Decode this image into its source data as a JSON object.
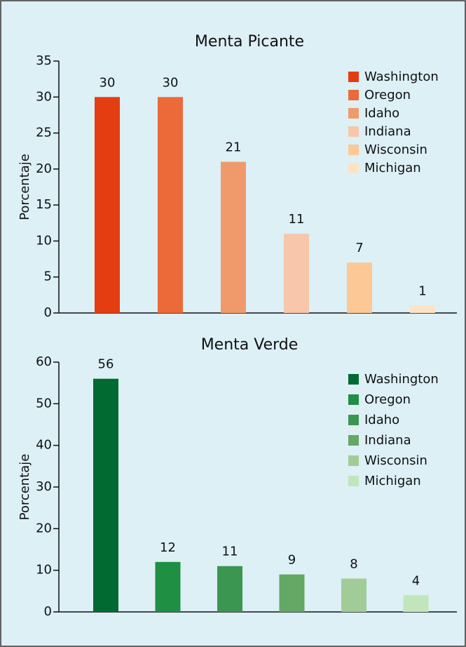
{
  "chart_data": [
    {
      "type": "bar",
      "title": "Menta Picante",
      "y_label": "Porcentaje",
      "categories": [
        "Washington",
        "Oregon",
        "Idaho",
        "Indiana",
        "Wisconsin",
        "Michigan"
      ],
      "values": [
        30,
        30,
        21,
        11,
        7,
        1
      ],
      "colors": [
        "#e43d12",
        "#ec6a3a",
        "#f09a6c",
        "#f7c6ab",
        "#fbc896",
        "#fde3c6"
      ],
      "ylim": [
        0,
        35
      ],
      "yticks": [
        0,
        5,
        10,
        15,
        20,
        25,
        30,
        35
      ],
      "legend": "upper right"
    },
    {
      "type": "bar",
      "title": "Menta Verde",
      "y_label": "Porcentaje",
      "categories": [
        "Washington",
        "Oregon",
        "Idaho",
        "Indiana",
        "Wisconsin",
        "Michigan"
      ],
      "values": [
        56,
        12,
        11,
        9,
        8,
        4
      ],
      "colors": [
        "#006a30",
        "#1e8f43",
        "#3a9650",
        "#63a865",
        "#a2cc97",
        "#c2e6bc"
      ],
      "ylim": [
        0,
        60
      ],
      "yticks": [
        0,
        10,
        20,
        30,
        40,
        50,
        60
      ],
      "legend": "upper right"
    }
  ]
}
